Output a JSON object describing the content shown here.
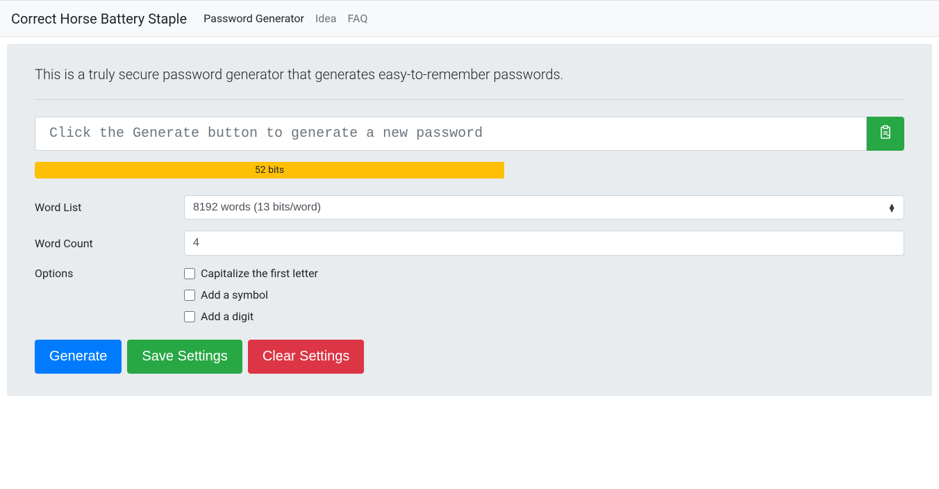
{
  "navbar": {
    "brand": "Correct Horse Battery Staple",
    "links": [
      {
        "label": "Password Generator",
        "active": true
      },
      {
        "label": "Idea",
        "active": false
      },
      {
        "label": "FAQ",
        "active": false
      }
    ]
  },
  "lead": "This is a truly secure password generator that generates easy-to-remember passwords.",
  "password": {
    "placeholder": "Click the Generate button to generate a new password",
    "value": ""
  },
  "strength": {
    "label": "52 bits",
    "percent": 54,
    "bar_color": "#ffc107"
  },
  "form": {
    "wordlist_label": "Word List",
    "wordlist_value": "8192 words (13 bits/word)",
    "wordcount_label": "Word Count",
    "wordcount_value": "4",
    "options_label": "Options",
    "options": [
      {
        "label": "Capitalize the first letter",
        "checked": false
      },
      {
        "label": "Add a symbol",
        "checked": false
      },
      {
        "label": "Add a digit",
        "checked": false
      }
    ]
  },
  "buttons": {
    "generate": "Generate",
    "save": "Save Settings",
    "clear": "Clear Settings"
  },
  "colors": {
    "navbar_bg": "#f8f9fa",
    "jumbotron_bg": "#e9ecef",
    "primary": "#007bff",
    "success": "#28a745",
    "danger": "#dc3545",
    "warning": "#ffc107",
    "border": "#ced4da"
  }
}
